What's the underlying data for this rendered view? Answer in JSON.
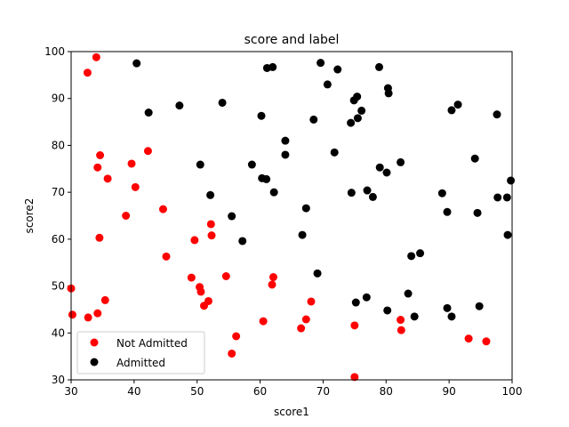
{
  "chart_data": {
    "type": "scatter",
    "title": "score and label",
    "xlabel": "score1",
    "ylabel": "score2",
    "xlim": [
      30,
      100
    ],
    "ylim": [
      30,
      100
    ],
    "xticks": [
      30,
      40,
      50,
      60,
      70,
      80,
      90,
      100
    ],
    "yticks": [
      30,
      40,
      50,
      60,
      70,
      80,
      90,
      100
    ],
    "grid": false,
    "legend_position": "lower-left",
    "series": [
      {
        "name": "Not Admitted",
        "color": "#ff0000",
        "points": [
          [
            34.0,
            98.8
          ],
          [
            32.6,
            95.5
          ],
          [
            42.2,
            78.8
          ],
          [
            34.6,
            77.9
          ],
          [
            34.2,
            75.3
          ],
          [
            39.6,
            76.1
          ],
          [
            35.8,
            72.9
          ],
          [
            40.2,
            71.1
          ],
          [
            44.6,
            66.4
          ],
          [
            38.7,
            65.0
          ],
          [
            34.5,
            60.3
          ],
          [
            52.2,
            63.2
          ],
          [
            49.6,
            59.8
          ],
          [
            52.3,
            60.8
          ],
          [
            45.1,
            56.3
          ],
          [
            30.0,
            49.5
          ],
          [
            35.4,
            47.0
          ],
          [
            49.1,
            51.8
          ],
          [
            50.4,
            49.8
          ],
          [
            50.6,
            48.8
          ],
          [
            54.6,
            52.1
          ],
          [
            62.1,
            51.9
          ],
          [
            61.9,
            50.3
          ],
          [
            51.1,
            45.8
          ],
          [
            51.8,
            46.8
          ],
          [
            68.1,
            46.7
          ],
          [
            30.2,
            43.9
          ],
          [
            32.7,
            43.3
          ],
          [
            34.2,
            44.2
          ],
          [
            60.5,
            42.5
          ],
          [
            67.3,
            42.9
          ],
          [
            66.5,
            41.0
          ],
          [
            56.2,
            39.3
          ],
          [
            75.0,
            41.6
          ],
          [
            82.3,
            42.8
          ],
          [
            82.4,
            40.6
          ],
          [
            93.1,
            38.8
          ],
          [
            95.9,
            38.2
          ],
          [
            55.5,
            35.6
          ],
          [
            75.0,
            30.6
          ]
        ]
      },
      {
        "name": "Admitted",
        "color": "#000000",
        "points": [
          [
            40.4,
            97.5
          ],
          [
            61.1,
            96.5
          ],
          [
            62.0,
            96.7
          ],
          [
            69.6,
            97.6
          ],
          [
            72.3,
            96.2
          ],
          [
            78.9,
            96.7
          ],
          [
            70.7,
            93.0
          ],
          [
            80.3,
            92.2
          ],
          [
            80.4,
            91.1
          ],
          [
            75.4,
            90.4
          ],
          [
            74.9,
            89.6
          ],
          [
            47.2,
            88.5
          ],
          [
            54.0,
            89.1
          ],
          [
            42.3,
            87.0
          ],
          [
            90.4,
            87.5
          ],
          [
            91.4,
            88.7
          ],
          [
            97.6,
            86.6
          ],
          [
            60.2,
            86.3
          ],
          [
            68.5,
            85.5
          ],
          [
            75.5,
            85.8
          ],
          [
            76.1,
            87.4
          ],
          [
            74.4,
            84.8
          ],
          [
            64.0,
            81.0
          ],
          [
            71.8,
            78.5
          ],
          [
            64.0,
            78.0
          ],
          [
            50.5,
            75.9
          ],
          [
            58.7,
            75.9
          ],
          [
            82.3,
            76.4
          ],
          [
            94.1,
            77.2
          ],
          [
            79.0,
            75.3
          ],
          [
            80.1,
            74.2
          ],
          [
            60.3,
            73.0
          ],
          [
            61.0,
            72.8
          ],
          [
            62.2,
            70.0
          ],
          [
            52.1,
            69.4
          ],
          [
            77.0,
            70.4
          ],
          [
            74.5,
            69.9
          ],
          [
            77.9,
            69.0
          ],
          [
            88.9,
            69.8
          ],
          [
            97.7,
            68.9
          ],
          [
            99.2,
            68.9
          ],
          [
            99.8,
            72.5
          ],
          [
            67.3,
            66.6
          ],
          [
            89.7,
            65.8
          ],
          [
            94.5,
            65.6
          ],
          [
            55.5,
            64.9
          ],
          [
            57.2,
            59.6
          ],
          [
            66.7,
            60.9
          ],
          [
            99.3,
            60.9
          ],
          [
            85.4,
            57.0
          ],
          [
            84.0,
            56.4
          ],
          [
            69.1,
            52.7
          ],
          [
            83.5,
            48.4
          ],
          [
            76.9,
            47.6
          ],
          [
            75.2,
            46.5
          ],
          [
            89.7,
            45.3
          ],
          [
            94.8,
            45.7
          ],
          [
            80.2,
            44.8
          ],
          [
            84.5,
            43.5
          ],
          [
            90.4,
            43.5
          ]
        ]
      }
    ]
  }
}
